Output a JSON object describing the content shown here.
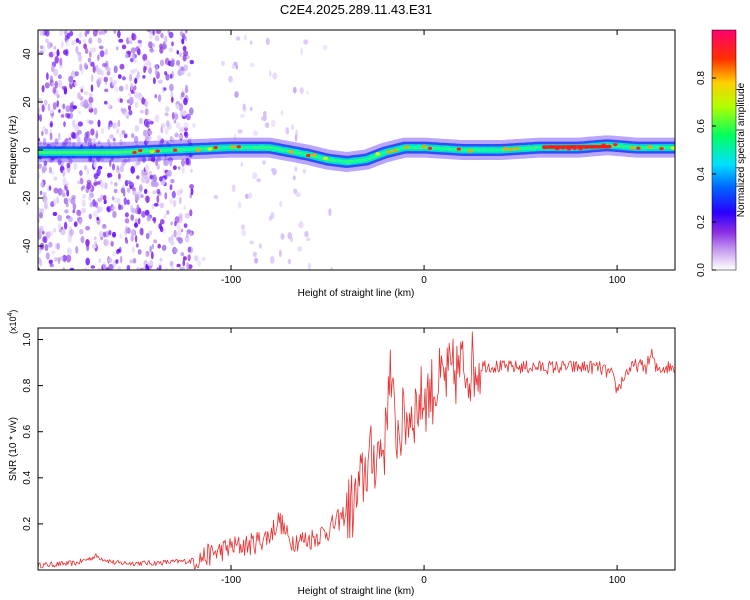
{
  "title": "C2E4.2025.289.11.43.E31",
  "chart_data": [
    {
      "type": "heatmap",
      "name": "spectrogram",
      "xlabel": "Height of straight line (km)",
      "ylabel": "Frequency (Hz)",
      "xlim": [
        -200,
        130
      ],
      "ylim": [
        -50,
        50
      ],
      "xticks": [
        -100,
        0,
        100
      ],
      "xtick_labels": [
        "-100",
        "0",
        "100"
      ],
      "yticks": [
        -40,
        -20,
        0,
        20,
        40
      ],
      "ytick_labels": [
        "-40",
        "-20",
        "0",
        "20",
        "40"
      ],
      "colorbar": {
        "label": "Normalized spectral amplitude",
        "range": [
          0,
          1
        ],
        "ticks": [
          0.0,
          0.2,
          0.4,
          0.6,
          0.8
        ],
        "tick_labels": [
          "0.0",
          "0.2",
          "0.4",
          "0.6",
          "0.8"
        ],
        "colors": [
          "#ffffff",
          "#8a2be2",
          "#0000ff",
          "#00ffff",
          "#00ff00",
          "#ffff00",
          "#ff8000",
          "#ff0000",
          "#ff0080"
        ]
      },
      "ridge": {
        "x": [
          -200,
          -160,
          -130,
          -100,
          -80,
          -60,
          -50,
          -40,
          -30,
          -20,
          -10,
          0,
          20,
          40,
          60,
          80,
          95,
          110,
          130
        ],
        "frequency": [
          -1,
          -1,
          0,
          1,
          1,
          -2,
          -4,
          -5,
          -4,
          -1,
          1,
          1,
          0,
          0,
          1,
          1,
          2,
          1,
          1
        ]
      }
    },
    {
      "type": "line",
      "name": "snr",
      "xlabel": "Height of straight line (km)",
      "ylabel": "SNR (10 * v/v)",
      "yscale_label": "(x10",
      "yscale_exp": "4",
      "xlim": [
        -200,
        130
      ],
      "ylim": [
        0,
        1.05
      ],
      "xticks": [
        -100,
        0,
        100
      ],
      "xtick_labels": [
        "-100",
        "0",
        "100"
      ],
      "yticks": [
        0.2,
        0.4,
        0.6,
        0.8,
        1.0
      ],
      "ytick_labels": [
        "0.2",
        "0.4",
        "0.6",
        "0.8",
        "1.0"
      ],
      "series": [
        {
          "name": "SNR",
          "color": "#e83030",
          "x": [
            -200,
            -180,
            -170,
            -160,
            -140,
            -120,
            -110,
            -100,
            -90,
            -80,
            -75,
            -70,
            -60,
            -50,
            -40,
            -35,
            -30,
            -25,
            -20,
            -18,
            -15,
            -12,
            -10,
            -5,
            0,
            10,
            20,
            30,
            40,
            50,
            60,
            70,
            80,
            90,
            97,
            100,
            105,
            110,
            115,
            118,
            120,
            125,
            130
          ],
          "y": [
            0.02,
            0.03,
            0.06,
            0.03,
            0.03,
            0.04,
            0.07,
            0.1,
            0.11,
            0.15,
            0.22,
            0.13,
            0.13,
            0.17,
            0.25,
            0.3,
            0.45,
            0.5,
            0.56,
            0.9,
            0.6,
            0.62,
            0.65,
            0.7,
            0.75,
            0.82,
            0.88,
            0.89,
            0.88,
            0.88,
            0.88,
            0.88,
            0.88,
            0.88,
            0.85,
            0.78,
            0.86,
            0.89,
            0.88,
            0.94,
            0.87,
            0.88,
            0.88
          ]
        }
      ]
    }
  ]
}
